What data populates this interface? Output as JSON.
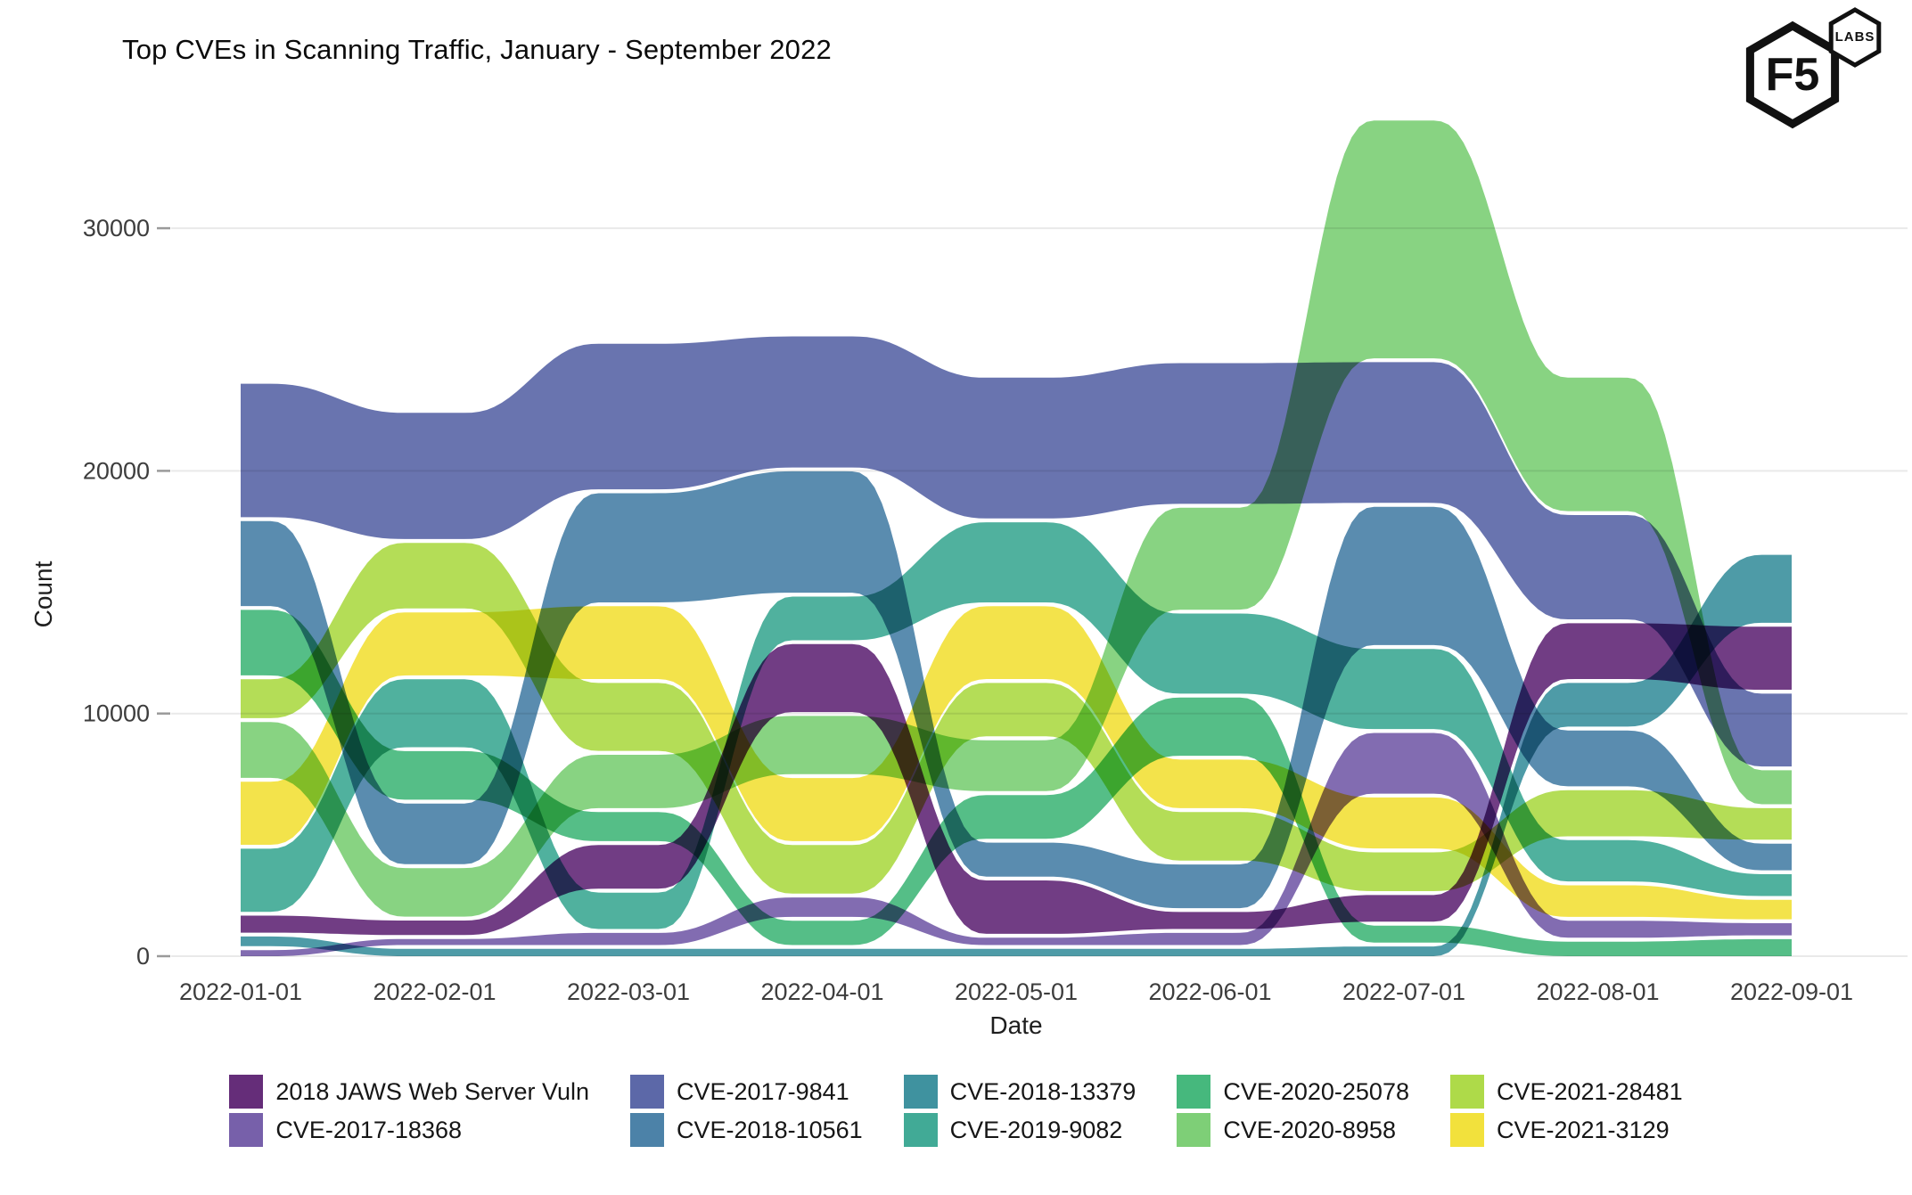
{
  "header": {
    "title": "Top CVEs in Scanning Traffic, January - September 2022"
  },
  "logo": {
    "primary": "F5",
    "secondary": "LABS"
  },
  "chart_data": {
    "type": "area",
    "variant": "streamgraph-bump-ribbons",
    "title": "Top CVEs in Scanning Traffic, January - September 2022",
    "xlabel": "Date",
    "ylabel": "Count",
    "x": [
      "2022-01-01",
      "2022-02-01",
      "2022-03-01",
      "2022-04-01",
      "2022-05-01",
      "2022-06-01",
      "2022-07-01",
      "2022-08-01",
      "2022-09-01"
    ],
    "y_ticks": [
      0,
      10000,
      20000,
      30000
    ],
    "ylim": [
      0,
      35500
    ],
    "grid": "horizontal",
    "legend_position": "bottom",
    "stack_gap_counts": 160,
    "series": [
      {
        "id": "jaws",
        "name": "2018 JAWS Web Server Vuln",
        "color": "#652d79",
        "values": [
          700,
          600,
          1800,
          2800,
          2200,
          700,
          1100,
          2300,
          2600
        ]
      },
      {
        "id": "18368",
        "name": "CVE-2017-18368",
        "color": "#7760aa",
        "values": [
          250,
          250,
          500,
          800,
          300,
          500,
          2500,
          700,
          500
        ]
      },
      {
        "id": "9841",
        "name": "CVE-2017-9841",
        "color": "#5c68a8",
        "values": [
          5500,
          5200,
          6000,
          5400,
          5800,
          5800,
          5800,
          4300,
          3000
        ]
      },
      {
        "id": "10561",
        "name": "CVE-2018-10561",
        "color": "#4c82a8",
        "values": [
          3500,
          2500,
          4500,
          5000,
          1400,
          1800,
          5700,
          2300,
          1100
        ]
      },
      {
        "id": "13379",
        "name": "CVE-2018-13379",
        "color": "#3f929f",
        "values": [
          400,
          300,
          300,
          300,
          300,
          300,
          400,
          1800,
          2800
        ]
      },
      {
        "id": "9082",
        "name": "CVE-2019-9082",
        "color": "#41aa96",
        "values": [
          2600,
          2800,
          1500,
          1800,
          3300,
          3300,
          3300,
          1700,
          900
        ]
      },
      {
        "id": "25078",
        "name": "CVE-2020-25078",
        "color": "#46b87d",
        "values": [
          2700,
          2000,
          1200,
          1000,
          1800,
          2400,
          700,
          600,
          700
        ]
      },
      {
        "id": "8958",
        "name": "CVE-2020-8958",
        "color": "#7ecf77",
        "values": [
          2300,
          2000,
          2200,
          2400,
          2100,
          4200,
          9800,
          5500,
          1400
        ]
      },
      {
        "id": "28481",
        "name": "CVE-2021-28481",
        "color": "#aeda49",
        "values": [
          1600,
          2700,
          2800,
          2000,
          2200,
          2000,
          1600,
          1900,
          1300
        ]
      },
      {
        "id": "3129",
        "name": "CVE-2021-3129",
        "color": "#f2e13c",
        "values": [
          2600,
          2600,
          3000,
          2600,
          3000,
          2000,
          2100,
          1300,
          800
        ]
      }
    ],
    "stack_order_top_to_bottom": [
      [
        "9841",
        "10561",
        "25078",
        "28481",
        "8958",
        "3129",
        "9082",
        "jaws",
        "13379",
        "18368"
      ],
      [
        "9841",
        "28481",
        "3129",
        "9082",
        "25078",
        "10561",
        "8958",
        "jaws",
        "18368",
        "13379"
      ],
      [
        "9841",
        "10561",
        "3129",
        "28481",
        "8958",
        "25078",
        "jaws",
        "9082",
        "18368",
        "13379"
      ],
      [
        "9841",
        "10561",
        "9082",
        "jaws",
        "8958",
        "3129",
        "28481",
        "18368",
        "25078",
        "13379"
      ],
      [
        "9841",
        "9082",
        "3129",
        "28481",
        "8958",
        "25078",
        "10561",
        "jaws",
        "18368",
        "13379"
      ],
      [
        "9841",
        "8958",
        "9082",
        "25078",
        "3129",
        "28481",
        "10561",
        "jaws",
        "18368",
        "13379"
      ],
      [
        "8958",
        "9841",
        "10561",
        "9082",
        "18368",
        "3129",
        "28481",
        "jaws",
        "25078",
        "13379"
      ],
      [
        "8958",
        "9841",
        "jaws",
        "13379",
        "10561",
        "28481",
        "9082",
        "3129",
        "18368",
        "25078"
      ],
      [
        "13379",
        "jaws",
        "9841",
        "8958",
        "28481",
        "10561",
        "9082",
        "3129",
        "18368",
        "25078"
      ]
    ]
  }
}
